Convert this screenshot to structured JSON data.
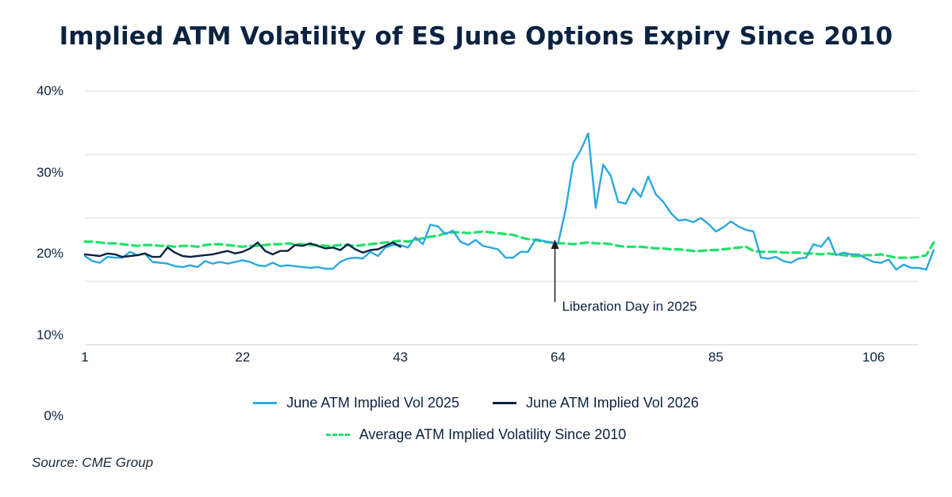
{
  "title": "Implied ATM Volatility of ES June Options Expiry Since 2010",
  "source": "Source: CME Group",
  "colors": {
    "vol2025": "#29a8e0",
    "vol2026": "#0b2340",
    "avg": "#1ee26a",
    "grid": "#d9d9d9",
    "text": "#0b2340"
  },
  "chart_data": {
    "type": "line",
    "title": "Implied ATM Volatility of ES June Options Expiry Since 2010",
    "xlabel": "",
    "ylabel": "",
    "xlim": [
      1,
      112
    ],
    "ylim": [
      0,
      0.4
    ],
    "x_ticks": [
      1,
      22,
      43,
      64,
      85,
      106
    ],
    "y_ticks": [
      {
        "value": 0.4,
        "label": "40%"
      },
      {
        "value": 0.3,
        "label": "30%"
      },
      {
        "value": 0.2,
        "label": "20%"
      },
      {
        "value": 0.1,
        "label": "10%"
      },
      {
        "value": 0.0,
        "label": "0%"
      }
    ],
    "grid": true,
    "legend_position": "bottom",
    "series": [
      {
        "name": "June ATM Implied Vol 2025",
        "color": "#29a8e0",
        "style": "solid",
        "start_x": 1,
        "values": [
          0.205,
          0.199,
          0.197,
          0.204,
          0.203,
          0.203,
          0.21,
          0.206,
          0.208,
          0.198,
          0.197,
          0.196,
          0.193,
          0.192,
          0.194,
          0.192,
          0.199,
          0.196,
          0.198,
          0.196,
          0.198,
          0.2,
          0.198,
          0.194,
          0.193,
          0.197,
          0.193,
          0.194,
          0.193,
          0.192,
          0.191,
          0.192,
          0.19,
          0.19,
          0.198,
          0.202,
          0.203,
          0.202,
          0.21,
          0.205,
          0.215,
          0.218,
          0.218,
          0.215,
          0.227,
          0.219,
          0.242,
          0.24,
          0.231,
          0.235,
          0.222,
          0.218,
          0.224,
          0.217,
          0.215,
          0.213,
          0.203,
          0.203,
          0.21,
          0.21,
          0.225,
          0.223,
          0.221,
          0.22,
          0.26,
          0.315,
          0.33,
          0.35,
          0.262,
          0.313,
          0.3,
          0.269,
          0.267,
          0.285,
          0.275,
          0.299,
          0.278,
          0.269,
          0.256,
          0.247,
          0.248,
          0.245,
          0.25,
          0.243,
          0.234,
          0.239,
          0.246,
          0.24,
          0.236,
          0.234,
          0.203,
          0.202,
          0.204,
          0.199,
          0.197,
          0.202,
          0.203,
          0.219,
          0.216,
          0.227,
          0.206,
          0.209,
          0.207,
          0.207,
          0.202,
          0.198,
          0.197,
          0.201,
          0.189,
          0.195,
          0.191,
          0.191,
          0.189,
          0.212
        ]
      },
      {
        "name": "June ATM Implied Vol 2026",
        "color": "#0b2340",
        "style": "solid",
        "start_x": 1,
        "values": [
          0.207,
          0.206,
          0.205,
          0.208,
          0.207,
          0.204,
          0.205,
          0.206,
          0.208,
          0.204,
          0.204,
          0.215,
          0.209,
          0.205,
          0.204,
          0.205,
          0.206,
          0.207,
          0.209,
          0.211,
          0.208,
          0.21,
          0.214,
          0.221,
          0.211,
          0.207,
          0.211,
          0.211,
          0.218,
          0.217,
          0.22,
          0.217,
          0.214,
          0.215,
          0.212,
          0.219,
          0.213,
          0.209,
          0.212,
          0.213,
          0.217,
          0.221,
          0.216
        ]
      },
      {
        "name": "Average ATM Implied Volatility Since 2010",
        "color": "#1ee26a",
        "style": "dashed",
        "start_x": 1,
        "values": [
          0.222,
          0.222,
          0.221,
          0.22,
          0.22,
          0.219,
          0.218,
          0.217,
          0.218,
          0.218,
          0.217,
          0.217,
          0.216,
          0.217,
          0.217,
          0.216,
          0.218,
          0.219,
          0.219,
          0.218,
          0.217,
          0.216,
          0.217,
          0.217,
          0.218,
          0.219,
          0.219,
          0.22,
          0.219,
          0.219,
          0.218,
          0.218,
          0.217,
          0.217,
          0.218,
          0.218,
          0.217,
          0.218,
          0.219,
          0.22,
          0.221,
          0.222,
          0.223,
          0.222,
          0.224,
          0.226,
          0.228,
          0.229,
          0.232,
          0.233,
          0.233,
          0.232,
          0.233,
          0.234,
          0.233,
          0.232,
          0.231,
          0.23,
          0.227,
          0.225,
          0.224,
          0.222,
          0.221,
          0.22,
          0.22,
          0.219,
          0.22,
          0.221,
          0.22,
          0.22,
          0.219,
          0.217,
          0.216,
          0.216,
          0.216,
          0.215,
          0.214,
          0.214,
          0.213,
          0.213,
          0.212,
          0.211,
          0.211,
          0.212,
          0.212,
          0.213,
          0.214,
          0.215,
          0.216,
          0.211,
          0.21,
          0.21,
          0.21,
          0.209,
          0.209,
          0.209,
          0.208,
          0.208,
          0.207,
          0.208,
          0.207,
          0.206,
          0.205,
          0.205,
          0.206,
          0.206,
          0.207,
          0.205,
          0.203,
          0.203,
          0.203,
          0.204,
          0.206,
          0.221
        ]
      }
    ],
    "annotations": [
      {
        "text": "Liberation Day in 2025",
        "x": 64,
        "y": 0.215
      }
    ]
  }
}
